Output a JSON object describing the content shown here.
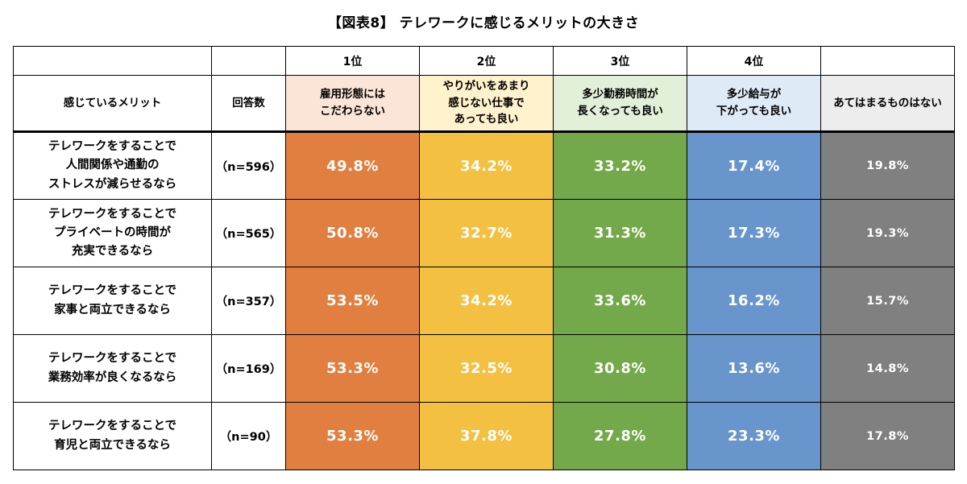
{
  "title": "【図表8】 テレワークに感じるメリットの大きさ",
  "rank_labels": [
    "1位",
    "2位",
    "3位",
    "4位"
  ],
  "header": {
    "row_label": "感じているメリット",
    "n_label": "回答数",
    "columns": [
      [
        "雇用形態には",
        "こだわらない"
      ],
      [
        "やりがいをあまり",
        "感じない仕事で",
        "あっても良い"
      ],
      [
        "多少勤務時間が",
        "長くなっても良い"
      ],
      [
        "多少給与が",
        "下がっても良い"
      ],
      [
        "あてはまるものはない"
      ]
    ]
  },
  "colors": {
    "col0": "#e07f3f",
    "col1": "#f3c042",
    "col2": "#73a94a",
    "col3": "#6895cc",
    "col4": "#808080"
  },
  "chart_data": {
    "type": "table",
    "title": "【図表8】 テレワークに感じるメリットの大きさ",
    "columns": [
      "雇用形態にはこだわらない",
      "やりがいをあまり感じない仕事であっても良い",
      "多少勤務時間が長くなっても良い",
      "多少給与が下がっても良い",
      "あてはまるものはない"
    ],
    "rows": [
      {
        "label": [
          "テレワークをすることで",
          "人間関係や通勤の",
          "ストレスが減らせるなら"
        ],
        "n": "（n=596）",
        "values": [
          "49.8%",
          "34.2%",
          "33.2%",
          "17.4%",
          "19.8%"
        ]
      },
      {
        "label": [
          "テレワークをすることで",
          "プライベートの時間が",
          "充実できるなら"
        ],
        "n": "（n=565）",
        "values": [
          "50.8%",
          "32.7%",
          "31.3%",
          "17.3%",
          "19.3%"
        ]
      },
      {
        "label": [
          "テレワークをすることで",
          "家事と両立できるなら"
        ],
        "n": "（n=357）",
        "values": [
          "53.5%",
          "34.2%",
          "33.6%",
          "16.2%",
          "15.7%"
        ]
      },
      {
        "label": [
          "テレワークをすることで",
          "業務効率が良くなるなら"
        ],
        "n": "（n=169）",
        "values": [
          "53.3%",
          "32.5%",
          "30.8%",
          "13.6%",
          "14.8%"
        ]
      },
      {
        "label": [
          "テレワークをすることで",
          "育児と両立できるなら"
        ],
        "n": "（n=90）",
        "values": [
          "53.3%",
          "37.8%",
          "27.8%",
          "23.3%",
          "17.8%"
        ]
      }
    ]
  }
}
